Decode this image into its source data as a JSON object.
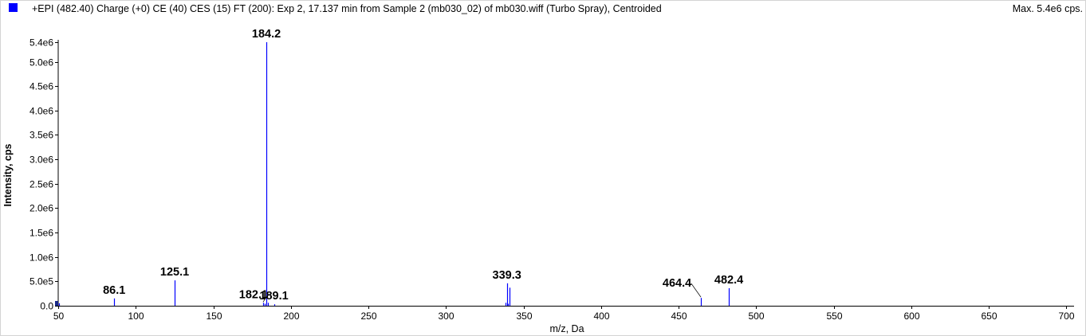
{
  "header": {
    "title": "+EPI (482.40) Charge (+0) CE (40) CES (15) FT (200): Exp 2, 17.137 min from Sample 2 (mb030_02) of mb030.wiff (Turbo Spray), Centroided",
    "max": "Max. 5.4e6 cps."
  },
  "colors": {
    "series": "#0000ff",
    "legend_swatch": "#0000ff",
    "axis": "#000000",
    "label_leader": "#000000"
  },
  "chart_data": {
    "type": "bar",
    "title": "+EPI (482.40) Charge (+0) CE (40) CES (15) FT (200): Exp 2, 17.137 min from Sample 2 (mb030_02) of mb030.wiff (Turbo Spray), Centroided",
    "xlabel": "m/z, Da",
    "ylabel": "Intensity, cps",
    "xlim": [
      50,
      705
    ],
    "ylim": [
      0,
      5400000
    ],
    "xticks": [
      50,
      100,
      150,
      200,
      250,
      300,
      350,
      400,
      450,
      500,
      550,
      600,
      650,
      700
    ],
    "xtick_labels": [
      "50",
      "100",
      "150",
      "200",
      "250",
      "300",
      "350",
      "400",
      "450",
      "500",
      "550",
      "600",
      "650",
      "700"
    ],
    "yticks": [
      0,
      500000,
      1000000,
      1500000,
      2000000,
      2500000,
      3000000,
      3500000,
      4000000,
      4500000,
      5000000,
      5400000
    ],
    "ytick_labels": [
      "0.0",
      "5.0e5",
      "1.0e6",
      "1.5e6",
      "2.0e6",
      "2.5e6",
      "3.0e6",
      "3.5e6",
      "4.0e6",
      "4.5e6",
      "5.0e6",
      "5.4e6"
    ],
    "grid": false,
    "legend": "top-left",
    "peaks": [
      {
        "mz": 50.5,
        "intensity": 50000
      },
      {
        "mz": 86.1,
        "intensity": 150000
      },
      {
        "mz": 125.1,
        "intensity": 520000
      },
      {
        "mz": 182.1,
        "intensity": 60000
      },
      {
        "mz": 183.2,
        "intensity": 40000
      },
      {
        "mz": 184.2,
        "intensity": 5400000
      },
      {
        "mz": 185.1,
        "intensity": 60000
      },
      {
        "mz": 189.1,
        "intensity": 30000
      },
      {
        "mz": 338.3,
        "intensity": 60000
      },
      {
        "mz": 339.3,
        "intensity": 460000
      },
      {
        "mz": 340.2,
        "intensity": 40000
      },
      {
        "mz": 341.2,
        "intensity": 370000
      },
      {
        "mz": 464.4,
        "intensity": 160000
      },
      {
        "mz": 482.4,
        "intensity": 360000
      }
    ],
    "peak_labels": [
      {
        "text": "86.1",
        "mz": 86.1,
        "intensity": 150000
      },
      {
        "text": "125.1",
        "mz": 125.1,
        "intensity": 520000
      },
      {
        "text": "184.2",
        "mz": 184.2,
        "intensity": 5400000
      },
      {
        "text": "182.1",
        "mz": 182.1,
        "intensity": 60000
      },
      {
        "text": "189.1",
        "mz": 189.1,
        "intensity": 30000
      },
      {
        "text": "339.3",
        "mz": 339.3,
        "intensity": 460000
      },
      {
        "text": "464.4",
        "mz": 464.4,
        "intensity": 160000
      },
      {
        "text": "482.4",
        "mz": 482.4,
        "intensity": 360000
      }
    ]
  }
}
